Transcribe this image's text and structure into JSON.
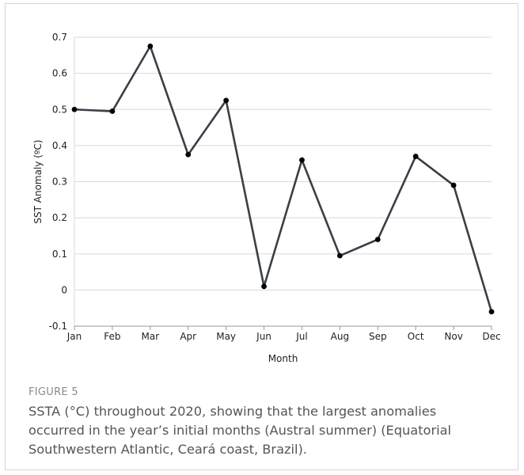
{
  "figure": {
    "label": "FIGURE 5",
    "caption": "SSTA (°C) throughout 2020, showing that the largest anomalies occurred in the year’s initial months (Austral summer) (Equatorial Southwestern Atlantic, Ceará coast, Brazil)."
  },
  "chart_data": {
    "type": "line",
    "title": "",
    "xlabel": "Month",
    "ylabel": "SST Anomaly (ºC)",
    "categories": [
      "Jan",
      "Feb",
      "Mar",
      "Apr",
      "May",
      "Jun",
      "Jul",
      "Aug",
      "Sep",
      "Oct",
      "Nov",
      "Dec"
    ],
    "series": [
      {
        "values": [
          0.5,
          0.495,
          0.675,
          0.375,
          0.525,
          0.01,
          0.36,
          0.095,
          0.14,
          0.37,
          0.29,
          -0.06
        ]
      }
    ],
    "ylim": [
      -0.1,
      0.7
    ],
    "yticks": [
      -0.1,
      0,
      0.1,
      0.2,
      0.3,
      0.4,
      0.5,
      0.6,
      0.7
    ],
    "ytick_labels": [
      "-0.1",
      "0",
      "0.1",
      "0.2",
      "0.3",
      "0.4",
      "0.5",
      "0.6",
      "0.7"
    ],
    "grid": true,
    "legend": "none",
    "colors": {
      "line": "#3a3f47",
      "grid": "#d9d9d9",
      "axis": "#999999"
    }
  }
}
